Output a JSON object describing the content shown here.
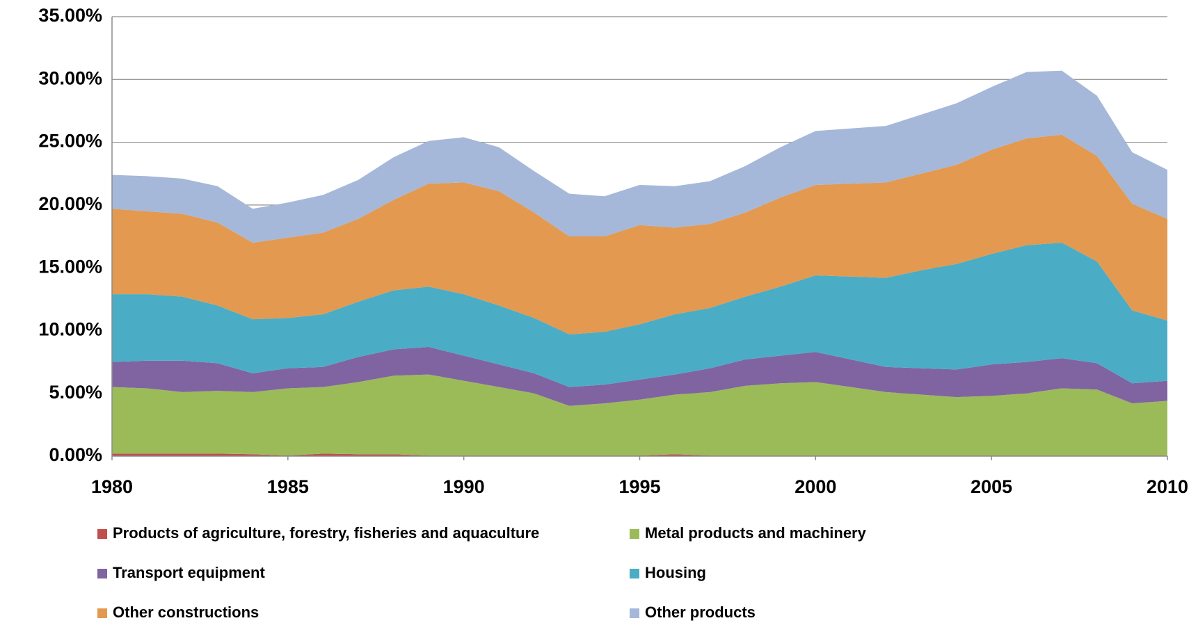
{
  "chart_data": {
    "type": "stacked-area",
    "x": [
      1980,
      1981,
      1982,
      1983,
      1984,
      1985,
      1986,
      1987,
      1988,
      1989,
      1990,
      1991,
      1992,
      1993,
      1994,
      1995,
      1996,
      1997,
      1998,
      1999,
      2000,
      2001,
      2002,
      2003,
      2004,
      2005,
      2006,
      2007,
      2008,
      2009,
      2010
    ],
    "xlim": [
      1980,
      2010
    ],
    "xticks": [
      1980,
      1985,
      1990,
      1995,
      2000,
      2005,
      2010
    ],
    "ylim": [
      0,
      35
    ],
    "yticks": [
      {
        "value": 0,
        "label": "0.00%"
      },
      {
        "value": 5,
        "label": "5.00%"
      },
      {
        "value": 10,
        "label": "10.00%"
      },
      {
        "value": 15,
        "label": "15.00%"
      },
      {
        "value": 20,
        "label": "20.00%"
      },
      {
        "value": 25,
        "label": "25.00%"
      },
      {
        "value": 30,
        "label": "30.00%"
      },
      {
        "value": 35,
        "label": "35.00%"
      }
    ],
    "grid": true,
    "legend": "bottom",
    "series": [
      {
        "name": "Products of agriculture, forestry, fisheries and aquaculture",
        "color": "#c0504d",
        "values": [
          0.2,
          0.2,
          0.2,
          0.2,
          0.15,
          0.05,
          0.2,
          0.15,
          0.15,
          0.05,
          0.05,
          0.05,
          0.05,
          0.05,
          0.05,
          0.05,
          0.15,
          0.05,
          0.05,
          0.05,
          0.05,
          0.05,
          0.05,
          0.05,
          0.05,
          0.05,
          0.05,
          0.05,
          0.05,
          0.05,
          0.05
        ]
      },
      {
        "name": "Metal products and machinery",
        "color": "#9bbb59",
        "values": [
          5.3,
          5.2,
          4.9,
          5.0,
          4.95,
          5.35,
          5.3,
          5.75,
          6.25,
          6.45,
          5.95,
          5.45,
          4.95,
          3.95,
          4.15,
          4.45,
          4.75,
          5.05,
          5.55,
          5.75,
          5.85,
          5.45,
          5.05,
          4.85,
          4.65,
          4.75,
          4.95,
          5.35,
          5.25,
          4.15,
          4.35
        ]
      },
      {
        "name": "Transport equipment",
        "color": "#8064a2",
        "values": [
          2.0,
          2.2,
          2.5,
          2.2,
          1.5,
          1.6,
          1.6,
          2.0,
          2.1,
          2.2,
          2.0,
          1.8,
          1.6,
          1.5,
          1.5,
          1.6,
          1.6,
          1.9,
          2.1,
          2.2,
          2.4,
          2.2,
          2.0,
          2.1,
          2.2,
          2.5,
          2.5,
          2.4,
          2.1,
          1.6,
          1.6
        ]
      },
      {
        "name": "Housing",
        "color": "#4bacc6",
        "values": [
          5.4,
          5.3,
          5.1,
          4.6,
          4.3,
          4.0,
          4.2,
          4.4,
          4.7,
          4.8,
          4.9,
          4.7,
          4.4,
          4.2,
          4.2,
          4.4,
          4.8,
          4.8,
          5.0,
          5.5,
          6.1,
          6.6,
          7.1,
          7.8,
          8.4,
          8.8,
          9.3,
          9.2,
          8.1,
          5.8,
          4.8
        ]
      },
      {
        "name": "Other constructions",
        "color": "#e3994f",
        "values": [
          6.8,
          6.6,
          6.6,
          6.6,
          6.1,
          6.4,
          6.5,
          6.6,
          7.2,
          8.2,
          8.9,
          9.1,
          8.4,
          7.8,
          7.6,
          7.9,
          6.9,
          6.7,
          6.7,
          7.1,
          7.2,
          7.4,
          7.6,
          7.7,
          7.9,
          8.3,
          8.5,
          8.6,
          8.4,
          8.5,
          8.1
        ]
      },
      {
        "name": "Other products",
        "color": "#a5b8da",
        "values": [
          2.7,
          2.8,
          2.8,
          2.9,
          2.7,
          2.8,
          3.0,
          3.1,
          3.4,
          3.4,
          3.6,
          3.5,
          3.3,
          3.4,
          3.2,
          3.2,
          3.3,
          3.4,
          3.7,
          4.0,
          4.3,
          4.4,
          4.5,
          4.7,
          4.9,
          5.0,
          5.3,
          5.1,
          4.8,
          4.1,
          3.9
        ]
      }
    ]
  }
}
